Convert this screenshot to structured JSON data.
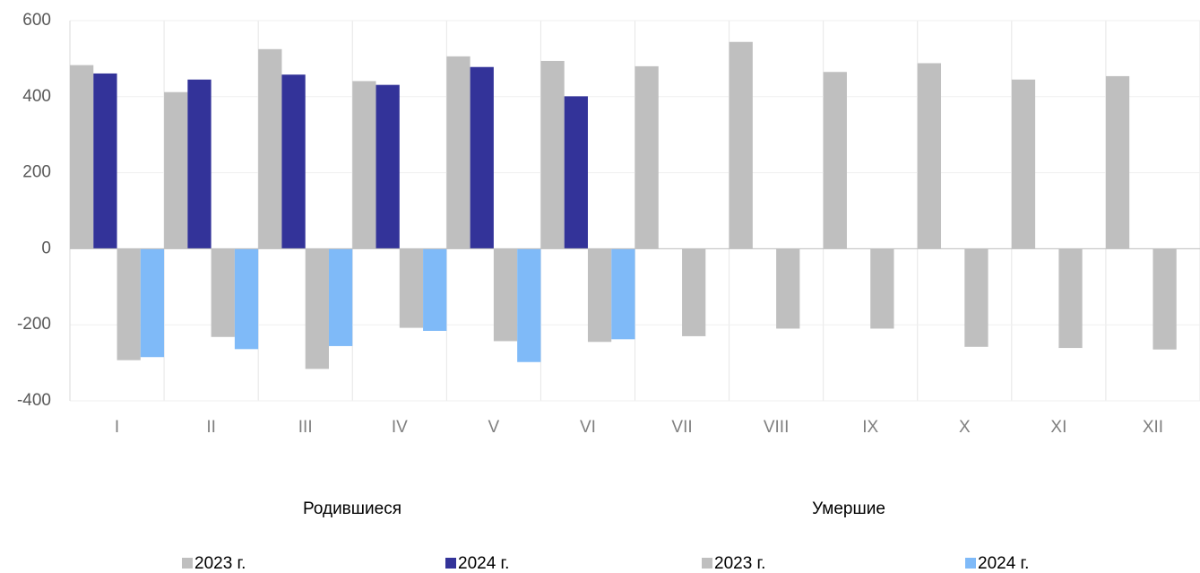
{
  "chart_data": {
    "type": "bar",
    "categories": [
      "I",
      "II",
      "III",
      "IV",
      "V",
      "VI",
      "VII",
      "VIII",
      "IX",
      "X",
      "XI",
      "XII"
    ],
    "legend_groups": [
      "Родившиеся",
      "Умершие"
    ],
    "series": [
      {
        "name": "2023 г.",
        "color": "#bfbfbf",
        "values": [
          483,
          412,
          525,
          441,
          506,
          494,
          480,
          544,
          465,
          488,
          445,
          454
        ]
      },
      {
        "name": "2024 г.",
        "color": "#333399",
        "values": [
          461,
          445,
          458,
          431,
          478,
          401,
          null,
          null,
          null,
          null,
          null,
          null
        ]
      },
      {
        "name": "2023 г.",
        "color": "#bfbfbf",
        "values": [
          -293,
          -232,
          -316,
          -208,
          -243,
          -245,
          -230,
          -210,
          -210,
          -258,
          -261,
          -265
        ]
      },
      {
        "name": "2024 г.",
        "color": "#7fbaf8",
        "values": [
          -285,
          -264,
          -256,
          -216,
          -298,
          -238,
          null,
          null,
          null,
          null,
          null,
          null
        ]
      }
    ],
    "ylim": [
      -400,
      600
    ],
    "yticks": [
      -400,
      -200,
      0,
      200,
      400,
      600
    ],
    "grid": true
  }
}
